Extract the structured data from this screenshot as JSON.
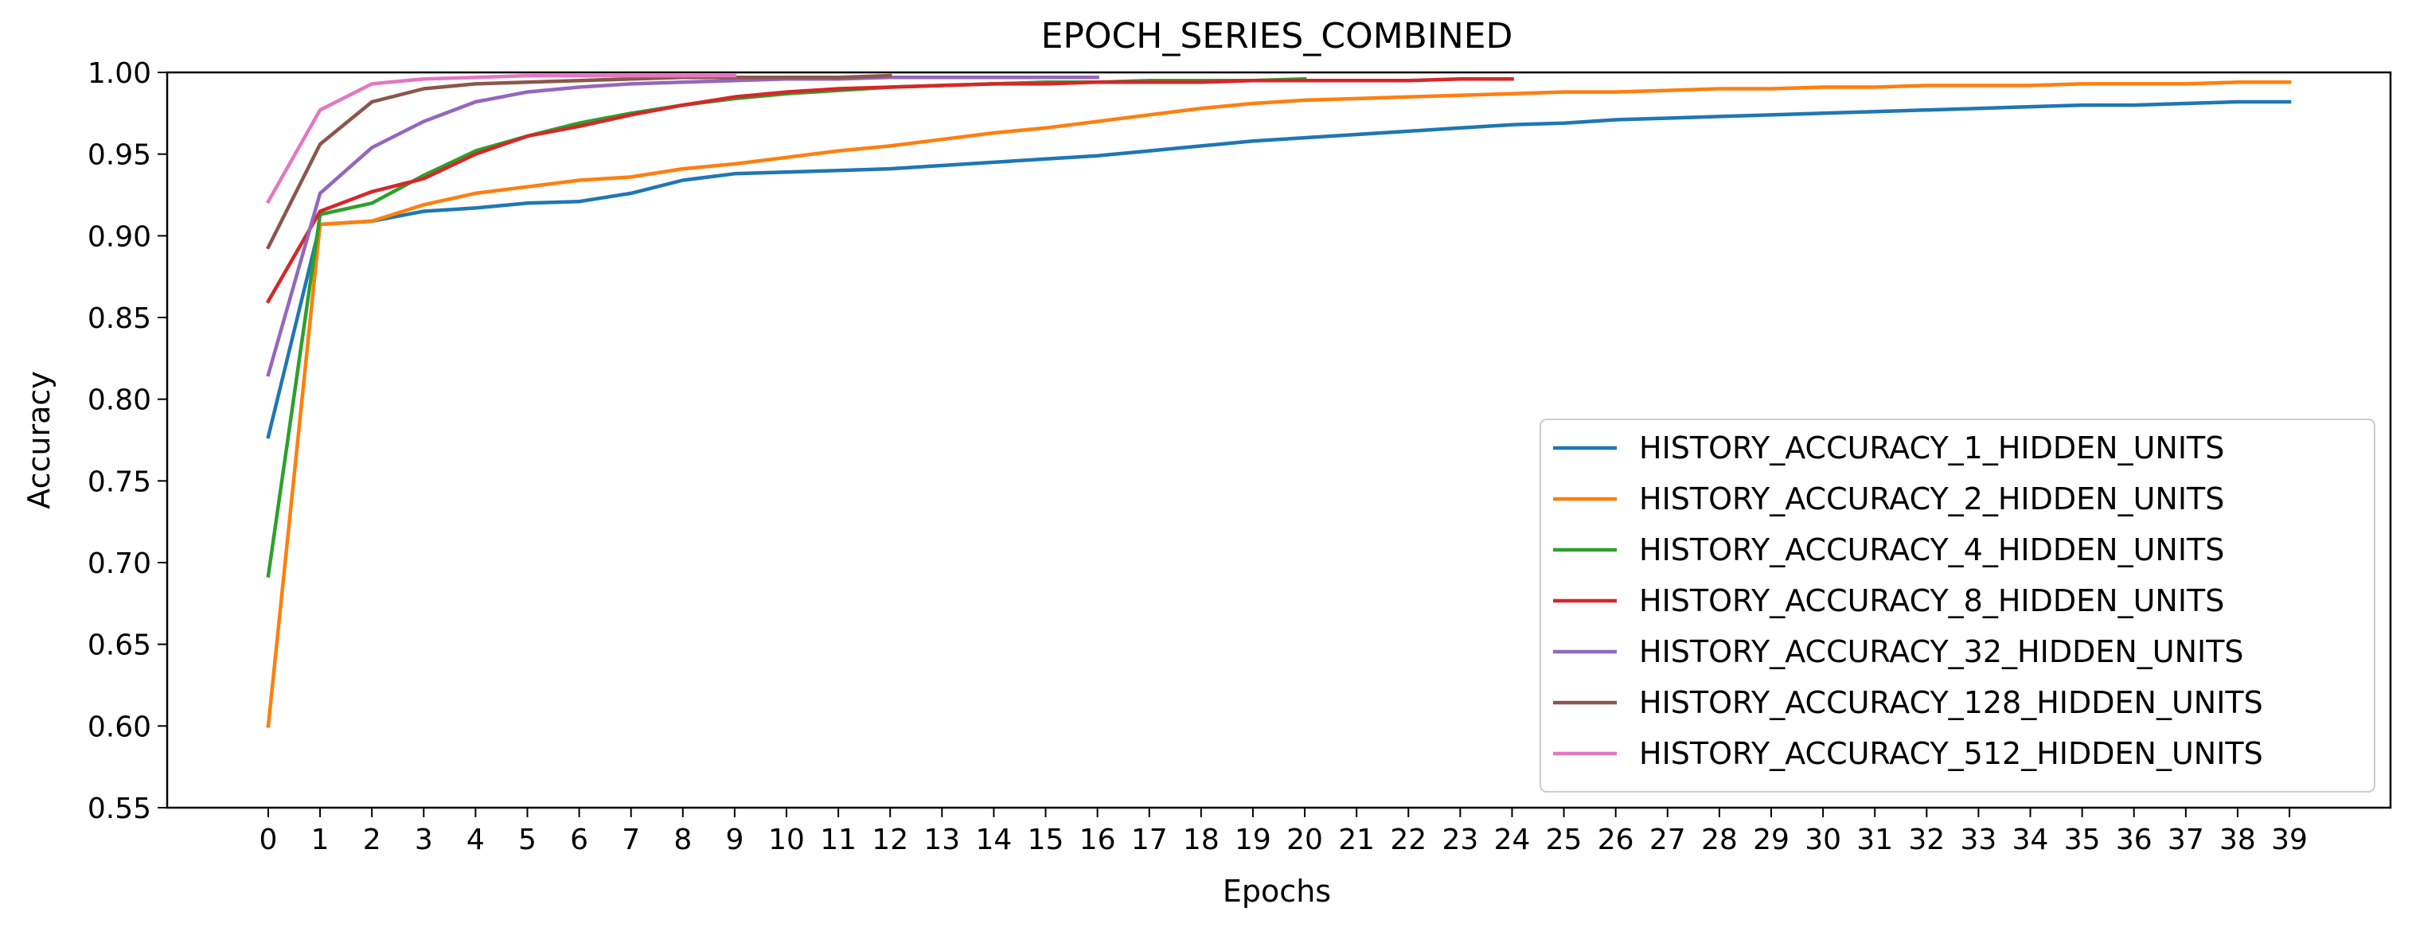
{
  "chart_data": {
    "type": "line",
    "title": "EPOCH_SERIES_COMBINED",
    "xlabel": "Epochs",
    "ylabel": "Accuracy",
    "xlim": [
      -1.95,
      40.95
    ],
    "ylim": [
      0.55,
      1.0
    ],
    "xticks": [
      0,
      1,
      2,
      3,
      4,
      5,
      6,
      7,
      8,
      9,
      10,
      11,
      12,
      13,
      14,
      15,
      16,
      17,
      18,
      19,
      20,
      21,
      22,
      23,
      24,
      25,
      26,
      27,
      28,
      29,
      30,
      31,
      32,
      33,
      34,
      35,
      36,
      37,
      38,
      39
    ],
    "yticks": [
      0.55,
      0.6,
      0.65,
      0.7,
      0.75,
      0.8,
      0.85,
      0.9,
      0.95,
      1.0
    ],
    "ytick_labels": [
      "0.55",
      "0.60",
      "0.65",
      "0.70",
      "0.75",
      "0.80",
      "0.85",
      "0.90",
      "0.95",
      "1.00"
    ],
    "legend_position": "lower-right",
    "series": [
      {
        "name": "HISTORY_ACCURACY_1_HIDDEN_UNITS",
        "color": "#1f77b4",
        "values": [
          0.777,
          0.907,
          0.909,
          0.915,
          0.917,
          0.92,
          0.921,
          0.926,
          0.934,
          0.938,
          0.939,
          0.94,
          0.941,
          0.943,
          0.945,
          0.947,
          0.949,
          0.952,
          0.955,
          0.958,
          0.96,
          0.962,
          0.964,
          0.966,
          0.968,
          0.969,
          0.971,
          0.972,
          0.973,
          0.974,
          0.975,
          0.976,
          0.977,
          0.978,
          0.979,
          0.98,
          0.98,
          0.981,
          0.982,
          0.982
        ]
      },
      {
        "name": "HISTORY_ACCURACY_2_HIDDEN_UNITS",
        "color": "#ff7f0e",
        "values": [
          0.6,
          0.907,
          0.909,
          0.919,
          0.926,
          0.93,
          0.934,
          0.936,
          0.941,
          0.944,
          0.948,
          0.952,
          0.955,
          0.959,
          0.963,
          0.966,
          0.97,
          0.974,
          0.978,
          0.981,
          0.983,
          0.984,
          0.985,
          0.986,
          0.987,
          0.988,
          0.988,
          0.989,
          0.99,
          0.99,
          0.991,
          0.991,
          0.992,
          0.992,
          0.992,
          0.993,
          0.993,
          0.993,
          0.994,
          0.994
        ]
      },
      {
        "name": "HISTORY_ACCURACY_4_HIDDEN_UNITS",
        "color": "#2ca02c",
        "values": [
          0.692,
          0.913,
          0.92,
          0.937,
          0.952,
          0.961,
          0.969,
          0.975,
          0.98,
          0.984,
          0.987,
          0.989,
          0.991,
          0.992,
          0.993,
          0.994,
          0.994,
          0.995,
          0.995,
          0.995,
          0.996
        ]
      },
      {
        "name": "HISTORY_ACCURACY_8_HIDDEN_UNITS",
        "color": "#d62728",
        "values": [
          0.86,
          0.915,
          0.927,
          0.935,
          0.95,
          0.961,
          0.967,
          0.974,
          0.98,
          0.985,
          0.988,
          0.99,
          0.991,
          0.992,
          0.993,
          0.993,
          0.994,
          0.994,
          0.994,
          0.995,
          0.995,
          0.995,
          0.995,
          0.996,
          0.996
        ]
      },
      {
        "name": "HISTORY_ACCURACY_32_HIDDEN_UNITS",
        "color": "#9467bd",
        "values": [
          0.815,
          0.926,
          0.954,
          0.97,
          0.982,
          0.988,
          0.991,
          0.993,
          0.994,
          0.995,
          0.996,
          0.996,
          0.997,
          0.997,
          0.997,
          0.997,
          0.997
        ]
      },
      {
        "name": "HISTORY_ACCURACY_128_HIDDEN_UNITS",
        "color": "#8c564b",
        "values": [
          0.893,
          0.956,
          0.982,
          0.99,
          0.993,
          0.994,
          0.995,
          0.996,
          0.997,
          0.997,
          0.997,
          0.997,
          0.998
        ]
      },
      {
        "name": "HISTORY_ACCURACY_512_HIDDEN_UNITS",
        "color": "#e377c2",
        "values": [
          0.921,
          0.977,
          0.993,
          0.996,
          0.997,
          0.998,
          0.998,
          0.998,
          0.998,
          0.998
        ]
      }
    ]
  }
}
